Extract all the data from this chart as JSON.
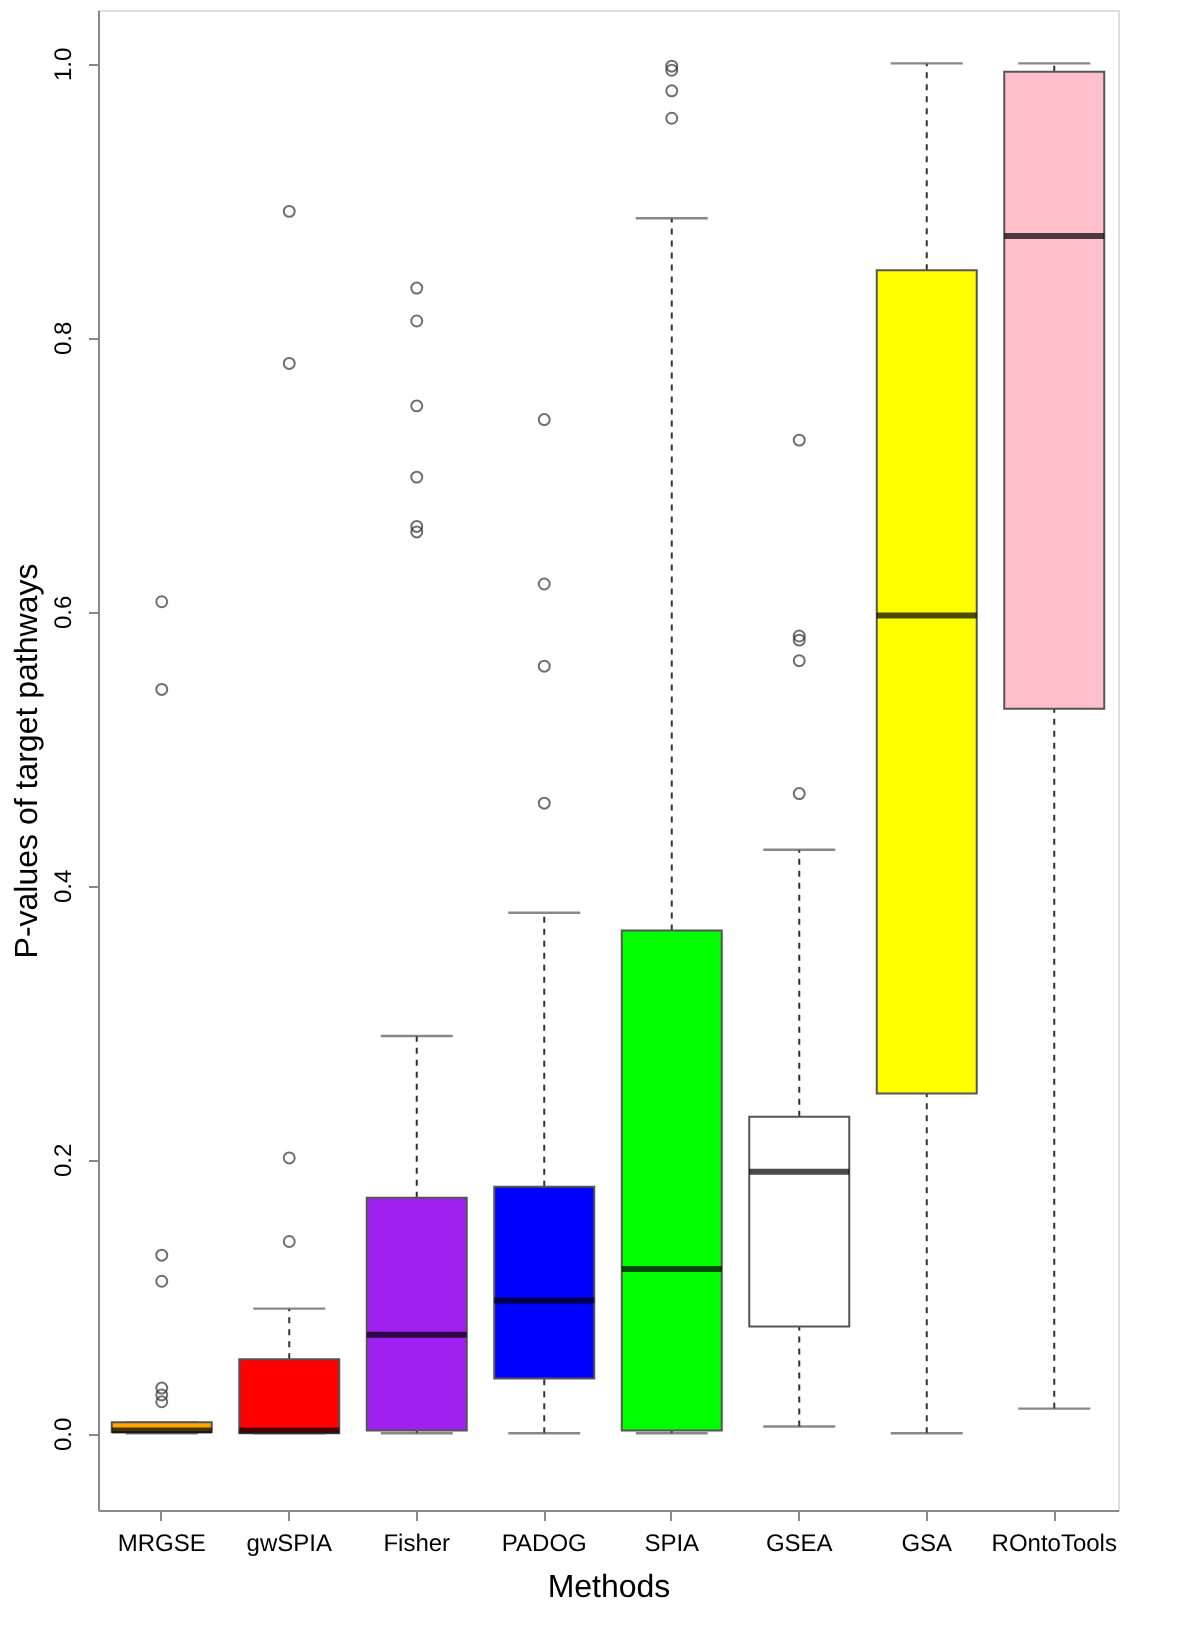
{
  "chart_data": {
    "type": "box",
    "xlabel": "Methods",
    "ylabel": "P-values of target pathways",
    "categories": [
      "MRGSE",
      "gwSPIA",
      "Fisher",
      "PADOG",
      "SPIA",
      "GSEA",
      "GSA",
      "ROntoTools"
    ],
    "colors": [
      "#ffa500",
      "#ff0000",
      "#a020f0",
      "#0000ff",
      "#00ff00",
      "#ffffff",
      "#ffff00",
      "#ffc0cb"
    ],
    "boxes": [
      {
        "low": 0,
        "q1": 0.001,
        "median": 0.002,
        "q3": 0.008,
        "high": 0.008,
        "outliers": [
          0.607,
          0.543,
          0.13,
          0.111,
          0.033,
          0.028,
          0.023
        ]
      },
      {
        "low": 0,
        "q1": 0,
        "median": 0.002,
        "q3": 0.054,
        "high": 0.091,
        "outliers": [
          0.892,
          0.781,
          0.201,
          0.14
        ]
      },
      {
        "low": 0,
        "q1": 0.002,
        "median": 0.072,
        "q3": 0.172,
        "high": 0.29,
        "outliers": [
          0.836,
          0.812,
          0.75,
          0.698,
          0.662,
          0.658
        ]
      },
      {
        "low": 0,
        "q1": 0.04,
        "median": 0.097,
        "q3": 0.18,
        "high": 0.38,
        "outliers": [
          0.74,
          0.62,
          0.56,
          0.46
        ]
      },
      {
        "low": 0,
        "q1": 0.002,
        "median": 0.12,
        "q3": 0.367,
        "high": 0.887,
        "outliers": [
          0.96,
          0.98,
          0.995,
          0.998
        ]
      },
      {
        "low": 0.005,
        "q1": 0.078,
        "median": 0.191,
        "q3": 0.231,
        "high": 0.426,
        "outliers": [
          0.725,
          0.582,
          0.579,
          0.564,
          0.467
        ]
      },
      {
        "low": 0,
        "q1": 0.248,
        "median": 0.597,
        "q3": 0.849,
        "high": 1.0
      },
      {
        "low": 0.018,
        "q1": 0.529,
        "median": 0.874,
        "q3": 0.994,
        "high": 1.0
      }
    ],
    "ylim": [
      -0.056,
      1.039
    ],
    "yticks": [
      {
        "value": 0,
        "label": "0.0"
      },
      0.2,
      0.4,
      0.6,
      0.8,
      {
        "value": 1,
        "label": "1.0"
      }
    ],
    "grid": false
  }
}
